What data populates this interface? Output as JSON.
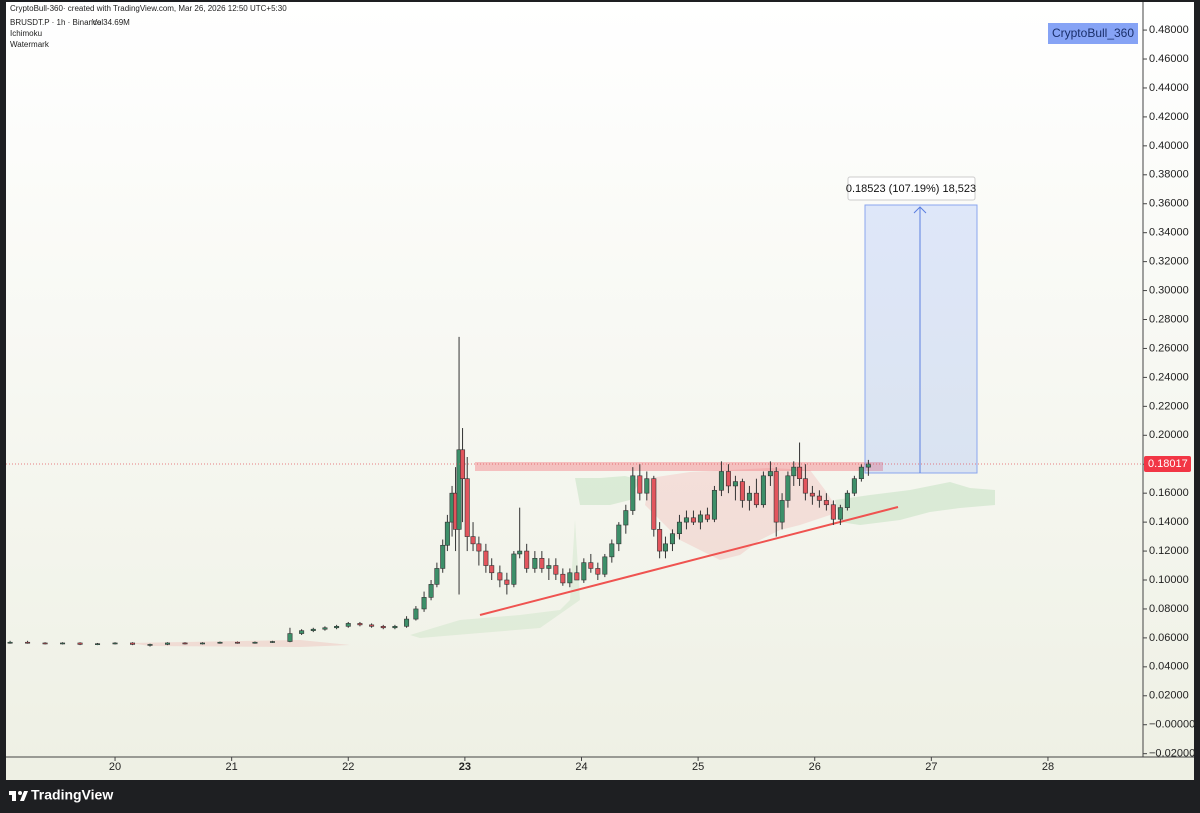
{
  "chart_data": {
    "type": "candlestick",
    "header": "CryptoBull-360· created with TradingView.com, Mar 26, 2026 12:50 UTC+5:30",
    "symbol": "BRUSDT.P · 1h · Binance",
    "volume": "Vol34.69M",
    "indicators": [
      "Ichimoku",
      "Watermark"
    ],
    "watermark": "CryptoBull_360",
    "measure_label": "0.18523 (107.19%) 18,523",
    "brand": "TradingView",
    "last_price": 0.18017,
    "up_color": "#3d8f69",
    "down_color": "#e2555d",
    "xlim": [
      19.065,
      28.815
    ],
    "xticks": [
      20,
      21,
      22,
      23,
      24,
      25,
      26,
      27,
      28
    ],
    "ylim": [
      -0.0223,
      0.4994
    ],
    "yticks": [
      {
        "value": 0.48,
        "label": "0.48000"
      },
      {
        "value": 0.46,
        "label": "0.46000"
      },
      {
        "value": 0.44,
        "label": "0.44000"
      },
      {
        "value": 0.42,
        "label": "0.42000"
      },
      {
        "value": 0.4,
        "label": "0.40000"
      },
      {
        "value": 0.38,
        "label": "0.38000"
      },
      {
        "value": 0.36,
        "label": "0.36000"
      },
      {
        "value": 0.34,
        "label": "0.34000"
      },
      {
        "value": 0.32,
        "label": "0.32000"
      },
      {
        "value": 0.3,
        "label": "0.30000"
      },
      {
        "value": 0.28,
        "label": "0.28000"
      },
      {
        "value": 0.26,
        "label": "0.26000"
      },
      {
        "value": 0.24,
        "label": "0.24000"
      },
      {
        "value": 0.22,
        "label": "0.22000"
      },
      {
        "value": 0.2,
        "label": "0.20000"
      },
      {
        "value": 0.18,
        "label": "0.18000"
      },
      {
        "value": 0.16,
        "label": "0.16000"
      },
      {
        "value": 0.14,
        "label": "0.14000"
      },
      {
        "value": 0.12,
        "label": "0.12000"
      },
      {
        "value": 0.1,
        "label": "0.10000"
      },
      {
        "value": 0.08,
        "label": "0.08000"
      },
      {
        "value": 0.06,
        "label": "0.06000"
      },
      {
        "value": 0.04,
        "label": "0.04000"
      },
      {
        "value": 0.02,
        "label": "0.02000"
      },
      {
        "value": 0,
        "label": "−0.00000"
      },
      {
        "value": -0.02,
        "label": "−0.02000"
      }
    ],
    "x": [
      19.1,
      19.25,
      19.4,
      19.55,
      19.7,
      19.85,
      20.0,
      20.15,
      20.3,
      20.45,
      20.6,
      20.75,
      20.9,
      21.05,
      21.2,
      21.35,
      21.5,
      21.6,
      21.7,
      21.8,
      21.9,
      22.0,
      22.1,
      22.2,
      22.3,
      22.4,
      22.5,
      22.58,
      22.65,
      22.71,
      22.76,
      22.81,
      22.85,
      22.89,
      22.92,
      22.95,
      22.98,
      23.02,
      23.07,
      23.12,
      23.18,
      23.23,
      23.3,
      23.36,
      23.42,
      23.47,
      23.53,
      23.6,
      23.66,
      23.72,
      23.78,
      23.84,
      23.9,
      23.96,
      24.02,
      24.08,
      24.14,
      24.2,
      24.26,
      24.32,
      24.38,
      24.44,
      24.5,
      24.56,
      24.62,
      24.67,
      24.72,
      24.78,
      24.84,
      24.9,
      24.96,
      25.02,
      25.08,
      25.14,
      25.2,
      25.26,
      25.32,
      25.38,
      25.44,
      25.5,
      25.56,
      25.62,
      25.67,
      25.72,
      25.77,
      25.82,
      25.87,
      25.92,
      25.98,
      26.04,
      26.1,
      26.16,
      26.22,
      26.28,
      26.34,
      26.4,
      26.46
    ],
    "open": [
      0.057,
      0.057,
      0.0565,
      0.056,
      0.0565,
      0.0555,
      0.056,
      0.0565,
      0.0555,
      0.0555,
      0.0565,
      0.056,
      0.0565,
      0.057,
      0.0565,
      0.057,
      0.0575,
      0.063,
      0.065,
      0.066,
      0.067,
      0.068,
      0.07,
      0.069,
      0.068,
      0.067,
      0.068,
      0.073,
      0.08,
      0.088,
      0.097,
      0.108,
      0.124,
      0.14,
      0.16,
      0.135,
      0.19,
      0.17,
      0.13,
      0.125,
      0.12,
      0.11,
      0.105,
      0.1,
      0.097,
      0.118,
      0.12,
      0.108,
      0.115,
      0.108,
      0.11,
      0.104,
      0.098,
      0.105,
      0.1,
      0.112,
      0.108,
      0.104,
      0.116,
      0.125,
      0.138,
      0.148,
      0.172,
      0.16,
      0.17,
      0.135,
      0.12,
      0.125,
      0.132,
      0.14,
      0.143,
      0.14,
      0.145,
      0.142,
      0.162,
      0.175,
      0.165,
      0.168,
      0.155,
      0.16,
      0.152,
      0.172,
      0.175,
      0.14,
      0.155,
      0.172,
      0.178,
      0.17,
      0.16,
      0.158,
      0.155,
      0.152,
      0.142,
      0.15,
      0.16,
      0.17,
      0.178
    ],
    "high": [
      0.058,
      0.058,
      0.057,
      0.057,
      0.057,
      0.0565,
      0.057,
      0.057,
      0.056,
      0.057,
      0.057,
      0.057,
      0.0575,
      0.0575,
      0.0575,
      0.058,
      0.067,
      0.066,
      0.067,
      0.068,
      0.069,
      0.071,
      0.071,
      0.07,
      0.069,
      0.069,
      0.075,
      0.082,
      0.092,
      0.1,
      0.112,
      0.128,
      0.145,
      0.165,
      0.178,
      0.268,
      0.205,
      0.185,
      0.14,
      0.13,
      0.125,
      0.115,
      0.11,
      0.105,
      0.12,
      0.15,
      0.125,
      0.12,
      0.12,
      0.115,
      0.115,
      0.108,
      0.108,
      0.11,
      0.115,
      0.118,
      0.112,
      0.118,
      0.128,
      0.14,
      0.152,
      0.178,
      0.18,
      0.175,
      0.172,
      0.14,
      0.13,
      0.135,
      0.145,
      0.148,
      0.148,
      0.148,
      0.15,
      0.165,
      0.182,
      0.18,
      0.172,
      0.17,
      0.165,
      0.17,
      0.175,
      0.182,
      0.178,
      0.16,
      0.175,
      0.182,
      0.195,
      0.18,
      0.165,
      0.162,
      0.16,
      0.155,
      0.152,
      0.162,
      0.172,
      0.18,
      0.183
    ],
    "low": [
      0.056,
      0.056,
      0.0555,
      0.0555,
      0.055,
      0.055,
      0.0555,
      0.055,
      0.054,
      0.055,
      0.0555,
      0.0555,
      0.056,
      0.056,
      0.056,
      0.0565,
      0.057,
      0.062,
      0.064,
      0.065,
      0.066,
      0.067,
      0.068,
      0.067,
      0.066,
      0.066,
      0.067,
      0.072,
      0.078,
      0.086,
      0.095,
      0.105,
      0.12,
      0.13,
      0.12,
      0.09,
      0.14,
      0.12,
      0.12,
      0.11,
      0.105,
      0.1,
      0.095,
      0.09,
      0.095,
      0.115,
      0.105,
      0.105,
      0.105,
      0.1,
      0.1,
      0.096,
      0.095,
      0.1,
      0.098,
      0.105,
      0.1,
      0.102,
      0.112,
      0.12,
      0.132,
      0.145,
      0.155,
      0.155,
      0.13,
      0.115,
      0.115,
      0.12,
      0.128,
      0.135,
      0.138,
      0.135,
      0.14,
      0.14,
      0.158,
      0.16,
      0.155,
      0.15,
      0.148,
      0.15,
      0.15,
      0.165,
      0.13,
      0.135,
      0.15,
      0.165,
      0.165,
      0.155,
      0.152,
      0.15,
      0.148,
      0.138,
      0.138,
      0.148,
      0.158,
      0.168,
      0.172
    ],
    "close": [
      0.057,
      0.0565,
      0.056,
      0.0565,
      0.0555,
      0.056,
      0.0565,
      0.0555,
      0.0555,
      0.0565,
      0.056,
      0.0565,
      0.057,
      0.0565,
      0.057,
      0.0575,
      0.063,
      0.065,
      0.066,
      0.067,
      0.068,
      0.07,
      0.069,
      0.068,
      0.067,
      0.068,
      0.073,
      0.08,
      0.088,
      0.097,
      0.108,
      0.124,
      0.14,
      0.16,
      0.135,
      0.19,
      0.17,
      0.13,
      0.125,
      0.12,
      0.11,
      0.105,
      0.1,
      0.097,
      0.118,
      0.12,
      0.108,
      0.115,
      0.108,
      0.11,
      0.104,
      0.098,
      0.105,
      0.1,
      0.112,
      0.108,
      0.104,
      0.116,
      0.125,
      0.138,
      0.148,
      0.172,
      0.16,
      0.17,
      0.135,
      0.12,
      0.125,
      0.132,
      0.14,
      0.143,
      0.14,
      0.145,
      0.142,
      0.162,
      0.175,
      0.165,
      0.168,
      0.155,
      0.16,
      0.152,
      0.172,
      0.175,
      0.14,
      0.155,
      0.172,
      0.178,
      0.17,
      0.16,
      0.158,
      0.155,
      0.152,
      0.142,
      0.15,
      0.16,
      0.17,
      0.178,
      0.18017
    ]
  }
}
